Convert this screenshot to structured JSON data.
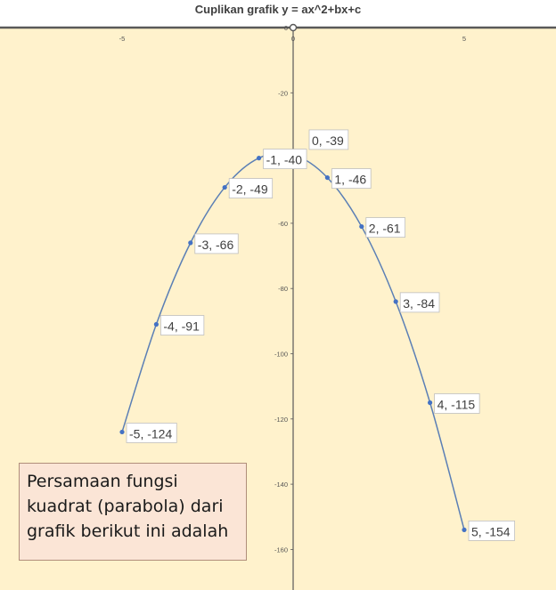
{
  "chart_data": {
    "type": "scatter",
    "title": "Cuplikan grafik y = ax^2+bx+c",
    "xlabel": "",
    "ylabel": "",
    "xlim": [
      -6,
      6
    ],
    "ylim": [
      -170,
      0
    ],
    "x_ticks": [
      -5,
      0,
      5
    ],
    "y_ticks": [
      0,
      -20,
      -40,
      -60,
      -80,
      -100,
      -120,
      -140,
      -160
    ],
    "grid": false,
    "smooth_line": true,
    "series": [
      {
        "points": [
          {
            "x": -5,
            "y": -124,
            "label": "-5, -124"
          },
          {
            "x": -4,
            "y": -91,
            "label": "-4, -91"
          },
          {
            "x": -3,
            "y": -66,
            "label": "-3, -66"
          },
          {
            "x": -2,
            "y": -49,
            "label": "-2, -49"
          },
          {
            "x": -1,
            "y": -40,
            "label": "-1, -40"
          },
          {
            "x": 0,
            "y": -39,
            "label": "0, -39"
          },
          {
            "x": 1,
            "y": -46,
            "label": "1, -46"
          },
          {
            "x": 2,
            "y": -61,
            "label": "2, -61"
          },
          {
            "x": 3,
            "y": -84,
            "label": "3, -84"
          },
          {
            "x": 4,
            "y": -115,
            "label": "4, -115"
          },
          {
            "x": 5,
            "y": -154,
            "label": "5, -154"
          }
        ]
      }
    ]
  },
  "colors": {
    "plot_background": "#fff2cc",
    "axis": "#595959",
    "line": "#5b7fb5",
    "marker": "#4472c4",
    "question_background": "#fbe5d6"
  },
  "question": {
    "lines": [
      "Persamaan fungsi",
      "kuadrat (parabola) dari",
      "grafik berikut ini adalah"
    ]
  }
}
